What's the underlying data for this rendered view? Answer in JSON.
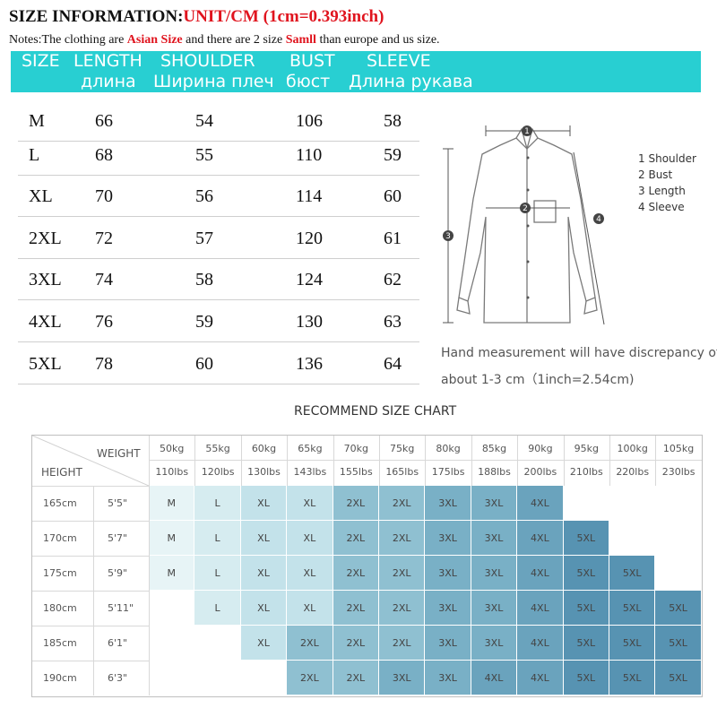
{
  "header": {
    "title_prefix": "SIZE INFORMATION:",
    "title_unit": "UNIT/CM  (1cm=0.393inch)",
    "notes_prefix": "Notes:The clothing are ",
    "notes_asian": "Asian Size",
    "notes_mid": " and there are 2 size ",
    "notes_small": "Samll",
    "notes_suffix": " than europe and us size."
  },
  "banner": {
    "colors": {
      "bg": "#28cfd2",
      "text": "#ffffff"
    },
    "en": [
      "SIZE",
      "LENGTH",
      "SHOULDER",
      "BUST",
      "SLEEVE"
    ],
    "ru": [
      "длина",
      "Ширина плеч",
      "бюст",
      "Длина рукава"
    ]
  },
  "size_table": {
    "rows": [
      [
        "M",
        "66",
        "54",
        "106",
        "58"
      ],
      [
        "L",
        "68",
        "55",
        "110",
        "59"
      ],
      [
        "XL",
        "70",
        "56",
        "114",
        "60"
      ],
      [
        "2XL",
        "72",
        "57",
        "120",
        "61"
      ],
      [
        "3XL",
        "74",
        "58",
        "124",
        "62"
      ],
      [
        "4XL",
        "76",
        "59",
        "130",
        "63"
      ],
      [
        "5XL",
        "78",
        "60",
        "136",
        "64"
      ]
    ]
  },
  "diagram": {
    "markers": [
      "1",
      "2",
      "3",
      "4"
    ],
    "legend": [
      "Shoulder",
      "Bust",
      "Length",
      "Sleeve"
    ],
    "note_line1": "Hand measurement will have discrepancy of",
    "note_line2": "about 1-3 cm（1inch=2.54cm)"
  },
  "recommend": {
    "title": "RECOMMEND SIZE CHART",
    "weight_label": "WEIGHT",
    "height_label": "HEIGHT",
    "weights_kg": [
      "50kg",
      "55kg",
      "60kg",
      "65kg",
      "70kg",
      "75kg",
      "80kg",
      "85kg",
      "90kg",
      "95kg",
      "100kg",
      "105kg"
    ],
    "weights_lbs": [
      "110lbs",
      "120lbs",
      "130lbs",
      "143lbs",
      "155lbs",
      "165lbs",
      "175lbs",
      "188lbs",
      "200lbs",
      "210lbs",
      "220lbs",
      "230lbs"
    ],
    "heights_cm": [
      "165cm",
      "170cm",
      "175cm",
      "180cm",
      "185cm",
      "190cm"
    ],
    "heights_ft": [
      "5'5\"",
      "5'7\"",
      "5'9\"",
      "5'11\"",
      "6'1\"",
      "6'3\""
    ],
    "grid": [
      [
        "M",
        "L",
        "XL",
        "XL",
        "2XL",
        "2XL",
        "3XL",
        "3XL",
        "4XL",
        "",
        "",
        ""
      ],
      [
        "M",
        "L",
        "XL",
        "XL",
        "2XL",
        "2XL",
        "3XL",
        "3XL",
        "4XL",
        "5XL",
        "",
        ""
      ],
      [
        "M",
        "L",
        "XL",
        "XL",
        "2XL",
        "2XL",
        "3XL",
        "3XL",
        "4XL",
        "5XL",
        "5XL",
        ""
      ],
      [
        "",
        "L",
        "XL",
        "XL",
        "2XL",
        "2XL",
        "3XL",
        "3XL",
        "4XL",
        "5XL",
        "5XL",
        "5XL"
      ],
      [
        "",
        "",
        "XL",
        "2XL",
        "2XL",
        "2XL",
        "3XL",
        "3XL",
        "4XL",
        "5XL",
        "5XL",
        "5XL"
      ],
      [
        "",
        "",
        "",
        "2XL",
        "2XL",
        "3XL",
        "3XL",
        "4XL",
        "4XL",
        "5XL",
        "5XL",
        "5XL"
      ]
    ],
    "size_colors": {
      "M": "#e7f4f6",
      "L": "#d6ecf0",
      "XL": "#c3e2ea",
      "2XL": "#8fc0d1",
      "3XL": "#79b0c6",
      "4XL": "#6aa3bd",
      "5XL": "#5793b2"
    }
  }
}
